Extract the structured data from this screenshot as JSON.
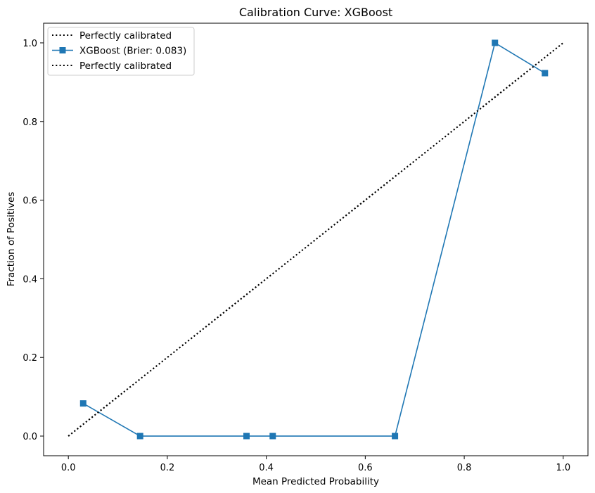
{
  "chart_data": {
    "type": "line",
    "title": "Calibration Curve: XGBoost",
    "xlabel": "Mean Predicted Probability",
    "ylabel": "Fraction of Positives",
    "xlim": [
      -0.05,
      1.05
    ],
    "ylim": [
      -0.05,
      1.05
    ],
    "x_ticks": [
      0.0,
      0.2,
      0.4,
      0.6,
      0.8,
      1.0
    ],
    "x_tick_labels": [
      "0.0",
      "0.2",
      "0.4",
      "0.6",
      "0.8",
      "1.0"
    ],
    "y_ticks": [
      0.0,
      0.2,
      0.4,
      0.6,
      0.8,
      1.0
    ],
    "y_tick_labels": [
      "0.0",
      "0.2",
      "0.4",
      "0.6",
      "0.8",
      "1.0"
    ],
    "grid": false,
    "legend_position": "top-left",
    "series": [
      {
        "name": "Perfectly calibrated",
        "style": "dotted",
        "color": "#000000",
        "x": [
          0.0,
          1.0
        ],
        "y": [
          0.0,
          1.0
        ]
      },
      {
        "name": "XGBoost (Brier: 0.083)",
        "style": "solid",
        "marker": "square",
        "color": "#1f77b4",
        "x": [
          0.03,
          0.145,
          0.36,
          0.413,
          0.66,
          0.862,
          0.963
        ],
        "y": [
          0.083,
          0.0,
          0.0,
          0.0,
          0.0,
          1.0,
          0.923
        ]
      },
      {
        "name": "Perfectly calibrated",
        "style": "dotted",
        "color": "#000000",
        "x": [
          0.0,
          1.0
        ],
        "y": [
          0.0,
          1.0
        ]
      }
    ]
  }
}
